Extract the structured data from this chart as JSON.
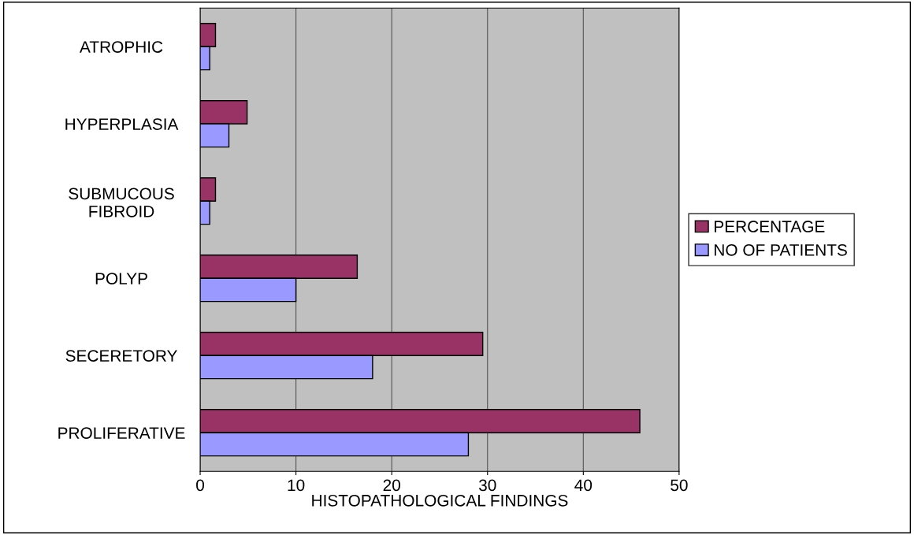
{
  "chart_data": {
    "type": "bar",
    "orientation": "horizontal",
    "xlabel": "HISTOPATHOLOGICAL FINDINGS",
    "categories": [
      "ATROPHIC",
      "HYPERPLASIA",
      "SUBMUCOUS\nFIBROID",
      "POLYP",
      "SECERETORY",
      "PROLIFERATIVE"
    ],
    "series": [
      {
        "name": "PERCENTAGE",
        "color": "#993366",
        "values": [
          1.6,
          4.9,
          1.6,
          16.4,
          29.5,
          45.9
        ]
      },
      {
        "name": "NO OF PATIENTS",
        "color": "#9999ff",
        "values": [
          1,
          3,
          1,
          10,
          18,
          28
        ]
      }
    ],
    "xlim": [
      0,
      50
    ],
    "xticks": [
      0,
      10,
      20,
      30,
      40,
      50
    ],
    "grid": "x",
    "legend": "right"
  }
}
